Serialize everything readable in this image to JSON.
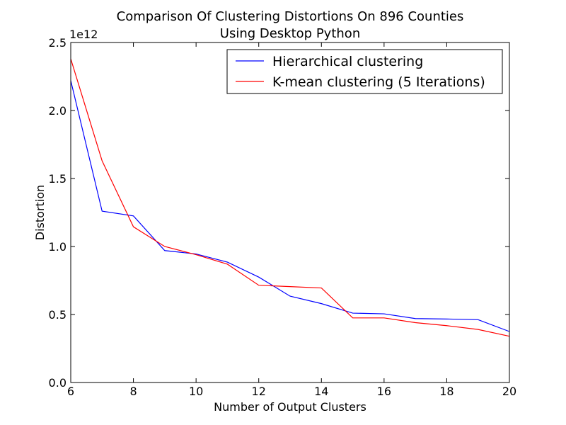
{
  "chart_data": {
    "type": "line",
    "title_line1": "Comparison Of Clustering Distortions On 896 Counties",
    "title_line2": "Using Desktop Python",
    "xlabel": "Number of Output Clusters",
    "ylabel": "Distortion",
    "y_offset_label": "1e12",
    "xlim": [
      6,
      20
    ],
    "ylim": [
      0.0,
      2.5
    ],
    "x_ticks": [
      6,
      8,
      10,
      12,
      14,
      16,
      18,
      20
    ],
    "x_tick_labels": [
      "6",
      "8",
      "10",
      "12",
      "14",
      "16",
      "18",
      "20"
    ],
    "y_ticks": [
      0.0,
      0.5,
      1.0,
      1.5,
      2.0,
      2.5
    ],
    "y_tick_labels": [
      "0.0",
      "0.5",
      "1.0",
      "1.5",
      "2.0",
      "2.5"
    ],
    "grid": false,
    "legend_position": "top-right",
    "series": [
      {
        "name": "Hierarchical clustering",
        "color": "#0000ff",
        "x": [
          6,
          7,
          8,
          9,
          10,
          11,
          12,
          13,
          14,
          15,
          16,
          17,
          18,
          19,
          20
        ],
        "y": [
          2.22,
          1.26,
          1.225,
          0.97,
          0.945,
          0.885,
          0.775,
          0.635,
          0.58,
          0.51,
          0.505,
          0.47,
          0.467,
          0.462,
          0.375
        ]
      },
      {
        "name": "K-mean clustering (5 Iterations)",
        "color": "#ff0000",
        "x": [
          6,
          7,
          8,
          9,
          10,
          11,
          12,
          13,
          14,
          15,
          16,
          17,
          18,
          19,
          20
        ],
        "y": [
          2.38,
          1.63,
          1.145,
          1.0,
          0.94,
          0.87,
          0.715,
          0.705,
          0.695,
          0.475,
          0.475,
          0.44,
          0.418,
          0.39,
          0.34
        ]
      }
    ]
  }
}
